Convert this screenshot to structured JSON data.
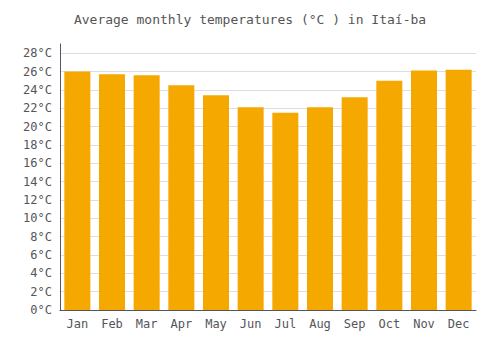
{
  "chart_data": {
    "type": "bar",
    "title": "Average monthly temperatures (°C ) in Itaí-ba",
    "categories": [
      "Jan",
      "Feb",
      "Mar",
      "Apr",
      "May",
      "Jun",
      "Jul",
      "Aug",
      "Sep",
      "Oct",
      "Nov",
      "Dec"
    ],
    "values": [
      26.0,
      25.7,
      25.6,
      24.5,
      23.4,
      22.1,
      21.5,
      22.1,
      23.2,
      25.0,
      26.1,
      26.2
    ],
    "color": "#F5A800",
    "ylim": [
      0,
      29
    ],
    "yticks": [
      {
        "value": 0,
        "label": "0°C"
      },
      {
        "value": 2,
        "label": "2°C"
      },
      {
        "value": 4,
        "label": "4°C"
      },
      {
        "value": 6,
        "label": "6°C"
      },
      {
        "value": 8,
        "label": "8°C"
      },
      {
        "value": 10,
        "label": "10°C"
      },
      {
        "value": 12,
        "label": "12°C"
      },
      {
        "value": 14,
        "label": "14°C"
      },
      {
        "value": 16,
        "label": "16°C"
      },
      {
        "value": 18,
        "label": "18°C"
      },
      {
        "value": 20,
        "label": "20°C"
      },
      {
        "value": 22,
        "label": "22°C"
      },
      {
        "value": 24,
        "label": "24°C"
      },
      {
        "value": 26,
        "label": "26°C"
      },
      {
        "value": 28,
        "label": "28°C"
      }
    ],
    "grid": true
  }
}
